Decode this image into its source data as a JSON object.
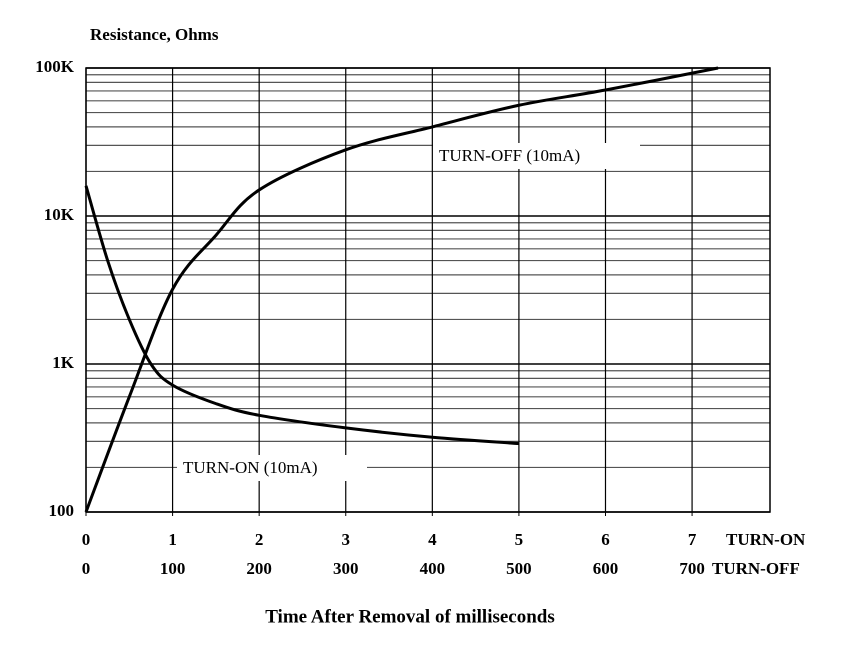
{
  "chart_data": {
    "type": "line",
    "title": "Resistance, Ohms",
    "xlabel": "Time  After  Removal  of  milliseconds",
    "x_axis_name": "TURN-ON",
    "x2_axis_name": "TURN-OFF",
    "ylog": true,
    "grid": true,
    "ylim": [
      100,
      100000
    ],
    "yticks": [
      {
        "value": 100,
        "label": "100"
      },
      {
        "value": 1000,
        "label": "1K"
      },
      {
        "value": 10000,
        "label": "10K"
      },
      {
        "value": 100000,
        "label": "100K"
      }
    ],
    "xlim": [
      0,
      7.9
    ],
    "xticks": [
      0,
      1,
      2,
      3,
      4,
      5,
      6,
      7
    ],
    "x2lim": [
      0,
      790
    ],
    "x2ticks": [
      0,
      100,
      200,
      300,
      400,
      500,
      600,
      700
    ],
    "series": [
      {
        "name": "TURN-ON (10mA)",
        "color": "#000000",
        "axis": "x",
        "x": [
          0,
          0.25,
          0.5,
          0.75,
          1,
          1.5,
          2,
          3,
          4,
          5
        ],
        "values": [
          16000,
          5000,
          2000,
          1000,
          720,
          540,
          450,
          370,
          320,
          290
        ]
      },
      {
        "name": "TURN-OFF (10mA)",
        "color": "#000000",
        "axis": "x2",
        "x": [
          0,
          50,
          100,
          150,
          200,
          300,
          400,
          500,
          600,
          730
        ],
        "values": [
          100,
          600,
          3200,
          7400,
          15000,
          28000,
          40000,
          56000,
          71000,
          100000
        ]
      }
    ]
  }
}
